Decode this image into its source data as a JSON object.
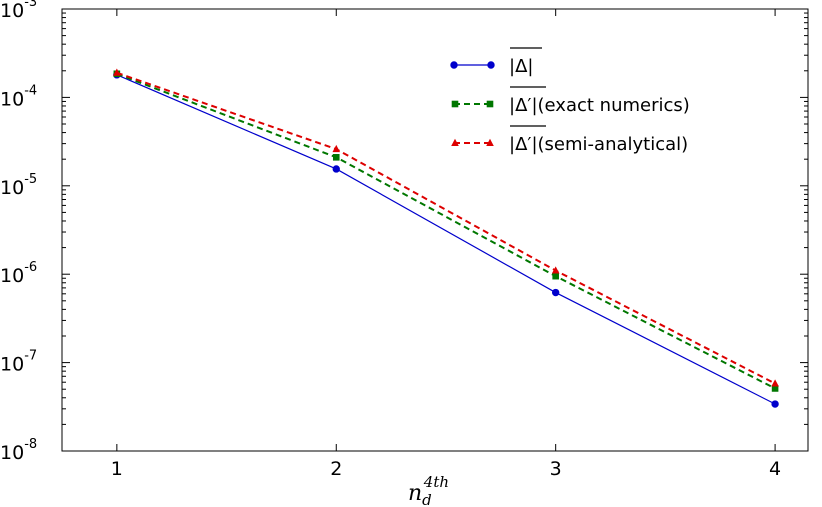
{
  "chart_data": {
    "type": "line",
    "title": "",
    "xlabel": "n_d^{4th}",
    "xlabel_parts": {
      "base": "n",
      "sub": "d",
      "sup": "4th"
    },
    "ylabel": "",
    "yscale": "log",
    "xlim": [
      0.75,
      4.15
    ],
    "ylim": [
      1e-08,
      0.001
    ],
    "x": [
      1,
      2,
      3,
      4
    ],
    "x_tick_labels": [
      "1",
      "2",
      "3",
      "4"
    ],
    "y_ticks": [
      {
        "value": 1e-08,
        "base": "10",
        "exp": "-8"
      },
      {
        "value": 1e-07,
        "base": "10",
        "exp": "-7"
      },
      {
        "value": 1e-06,
        "base": "10",
        "exp": "-6"
      },
      {
        "value": 1e-05,
        "base": "10",
        "exp": "-5"
      },
      {
        "value": 0.0001,
        "base": "10",
        "exp": "-4"
      },
      {
        "value": 0.001,
        "base": "10",
        "exp": "-3"
      }
    ],
    "grid": false,
    "legend_position": "top-right",
    "series": [
      {
        "name": "|Δ|",
        "name_suffix": "",
        "overline": true,
        "values": [
          0.00018,
          1.55e-05,
          6.2e-07,
          3.4e-08
        ],
        "color": "#0000cc",
        "dash": "solid",
        "marker": "circle"
      },
      {
        "name": "|Δ′|",
        "name_suffix": "(exact numerics)",
        "overline": true,
        "values": [
          0.000185,
          2.1e-05,
          9.5e-07,
          5.1e-08
        ],
        "color": "#007700",
        "dash": "dashed",
        "marker": "square"
      },
      {
        "name": "|Δ′|",
        "name_suffix": "(semi-analytical)",
        "overline": true,
        "values": [
          0.00019,
          2.6e-05,
          1.1e-06,
          5.8e-08
        ],
        "color": "#dd0000",
        "dash": "dashed",
        "marker": "triangle"
      }
    ]
  }
}
